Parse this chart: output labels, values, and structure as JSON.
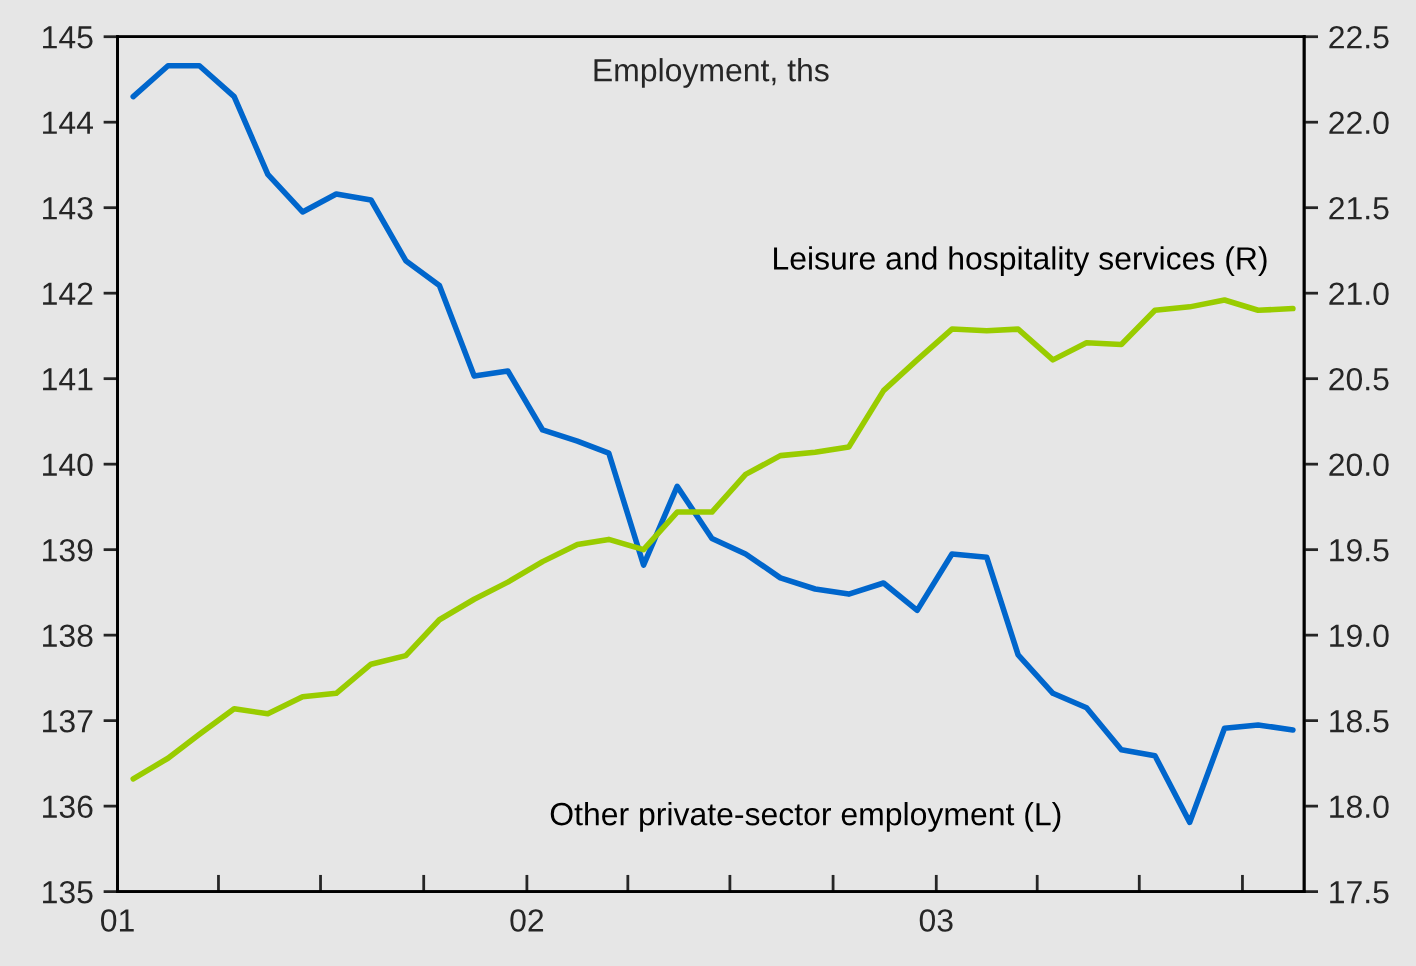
{
  "chart_data": {
    "type": "line",
    "title": "Employment, ths",
    "x": [
      "2001-01-15",
      "2001-02-15",
      "2001-03-15",
      "2001-04-15",
      "2001-05-15",
      "2001-06-15",
      "2001-07-15",
      "2001-08-15",
      "2001-09-15",
      "2001-10-15",
      "2001-11-15",
      "2001-12-15",
      "2002-01-15",
      "2002-02-15",
      "2002-03-15",
      "2002-04-15",
      "2002-05-15",
      "2002-06-15",
      "2002-07-15",
      "2002-08-15",
      "2002-09-15",
      "2002-10-15",
      "2002-11-15",
      "2002-12-15",
      "2003-01-15",
      "2003-02-15",
      "2003-03-15",
      "2003-04-15",
      "2003-05-15",
      "2003-06-15",
      "2003-07-15",
      "2003-08-15",
      "2003-09-15",
      "2003-10-15",
      "2003-11-15"
    ],
    "series": [
      {
        "name": "Other private-sector employment (L)",
        "color": "#0066cc",
        "values": [
          144.3,
          144.66,
          144.66,
          144.3,
          143.39,
          142.95,
          143.16,
          143.09,
          142.38,
          142.09,
          141.03,
          141.09,
          140.4,
          140.27,
          140.13,
          138.82,
          139.74,
          139.13,
          138.95,
          138.67,
          138.54,
          138.48,
          138.61,
          138.29,
          138.95,
          138.91,
          137.77,
          137.32,
          137.15,
          136.66,
          136.59,
          135.81,
          136.91,
          136.95,
          136.89
        ]
      },
      {
        "name": "Leisure and hospitality services (R)",
        "color": "#99cc00",
        "axis": "y2",
        "values": [
          18.16,
          18.28,
          18.42,
          18.57,
          18.54,
          18.64,
          18.66,
          18.83,
          18.88,
          19.09,
          19.21,
          19.31,
          19.43,
          19.53,
          19.56,
          19.5,
          19.72,
          19.72,
          19.94,
          20.05,
          20.07,
          20.1,
          20.43,
          20.61,
          20.79,
          20.78,
          20.79,
          20.61,
          20.71,
          20.7,
          20.9,
          20.92,
          20.96,
          20.9,
          20.91
        ]
      }
    ],
    "xlim": [
      "2001-01-01",
      "2003-11-25"
    ],
    "xticks": [
      {
        "value": "2001-01-01",
        "label": "01"
      },
      {
        "value": "2001-04-01",
        "label": null
      },
      {
        "value": "2001-07-01",
        "label": null
      },
      {
        "value": "2001-10-01",
        "label": null
      },
      {
        "value": "2002-01-01",
        "label": "02"
      },
      {
        "value": "2002-04-01",
        "label": null
      },
      {
        "value": "2002-07-01",
        "label": null
      },
      {
        "value": "2002-10-01",
        "label": null
      },
      {
        "value": "2003-01-01",
        "label": "03"
      },
      {
        "value": "2003-04-01",
        "label": null
      },
      {
        "value": "2003-07-01",
        "label": null
      },
      {
        "value": "2003-10-01",
        "label": null
      }
    ],
    "ylim": [
      135,
      145
    ],
    "yticks": [
      135,
      136,
      137,
      138,
      139,
      140,
      141,
      142,
      143,
      144,
      145
    ],
    "y2lim": [
      17.5,
      22.5
    ],
    "y2ticks": [
      {
        "value": 17.5,
        "label": "17.5"
      },
      {
        "value": 18,
        "label": "18.0"
      },
      {
        "value": 18.5,
        "label": "18.5"
      },
      {
        "value": 19,
        "label": "19.0"
      },
      {
        "value": 19.5,
        "label": "19.5"
      },
      {
        "value": 20,
        "label": "20.0"
      },
      {
        "value": 20.5,
        "label": "20.5"
      },
      {
        "value": 21,
        "label": "21.0"
      },
      {
        "value": 21.5,
        "label": "21.5"
      },
      {
        "value": 22,
        "label": "22.0"
      },
      {
        "value": 22.5,
        "label": "22.5"
      }
    ],
    "grid": false,
    "legend": false,
    "line_style": "solid",
    "marker": "none"
  }
}
